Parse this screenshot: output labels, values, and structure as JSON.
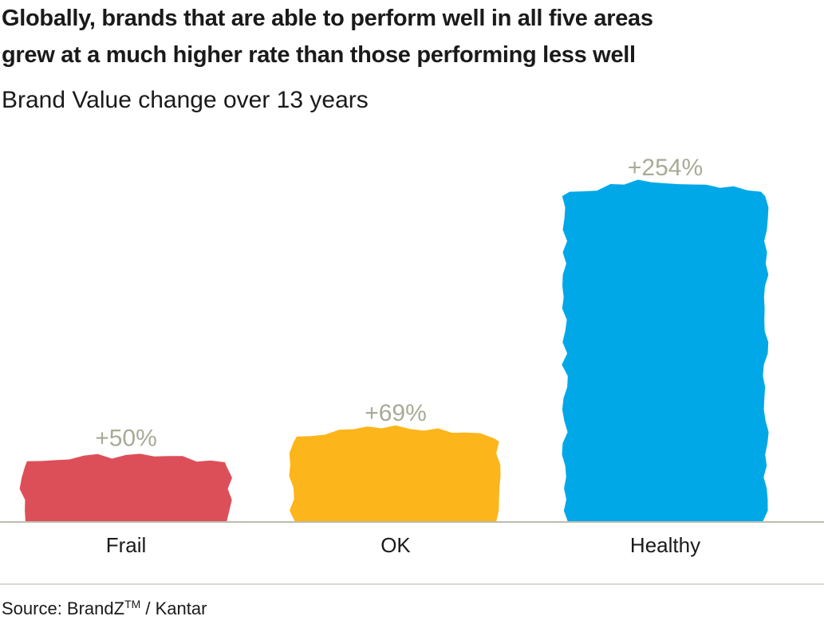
{
  "chart_data": {
    "type": "bar",
    "title_lines": [
      "Globally, brands that are able to perform well in all five areas",
      "grew at a much higher rate than those performing less well"
    ],
    "subtitle": "Brand Value change over 13 years",
    "categories": [
      "Frail",
      "OK",
      "Healthy"
    ],
    "values": [
      50,
      69,
      254
    ],
    "data_labels": [
      "+50%",
      "+69%",
      "+254%"
    ],
    "colors": [
      "#dd4f58",
      "#fcb51a",
      "#00a8e8"
    ],
    "label_color": "#a7ab96",
    "ylim": [
      0,
      290
    ],
    "grid": false,
    "xlabel": "",
    "ylabel": ""
  },
  "source": {
    "prefix": "Source: BrandZ",
    "tm": "TM",
    "suffix": " / Kantar"
  }
}
